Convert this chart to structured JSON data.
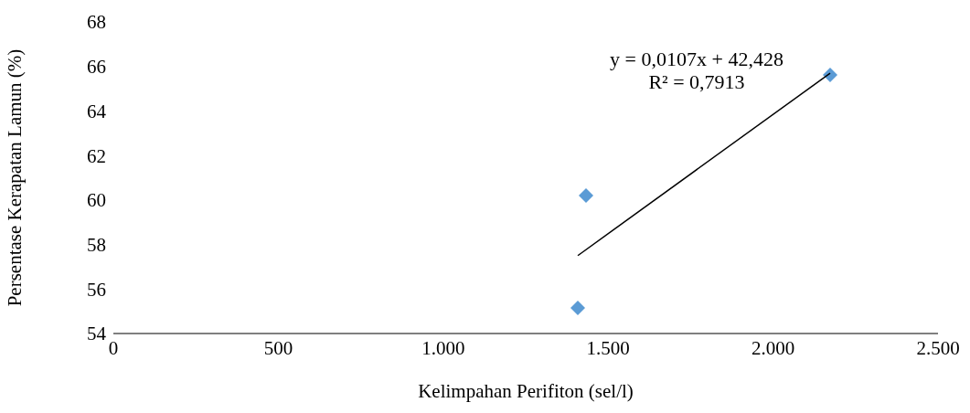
{
  "chart_data": {
    "type": "scatter",
    "xlabel": "Kelimpahan Perifiton (sel/l)",
    "ylabel": "Persentase Kerapatan Lamun (%)",
    "series": [
      {
        "color": "#5b9bd5",
        "marker": "diamond",
        "x": [
          1408,
          1433,
          2173
        ],
        "values": [
          55.15,
          60.2,
          65.62
        ]
      },
      {
        "type": "line",
        "color": "#000000",
        "marker": "none",
        "x": [
          1408,
          2173
        ],
        "values": [
          57.5,
          65.7
        ]
      }
    ],
    "xlim": [
      0,
      2500
    ],
    "xticks": [
      0,
      500,
      {
        "value": 1000,
        "label": "1.000"
      },
      {
        "value": 1500,
        "label": "1.500"
      },
      {
        "value": 2000,
        "label": "2.000"
      },
      {
        "value": 2500,
        "label": "2.500"
      }
    ],
    "ylim": [
      54,
      68
    ],
    "yticks": [
      54,
      56,
      58,
      60,
      62,
      64,
      66,
      68
    ],
    "annotations": [
      "y = 0,0107x + 42,428",
      "R² = 0,7913"
    ],
    "grid": false,
    "legend": false
  }
}
